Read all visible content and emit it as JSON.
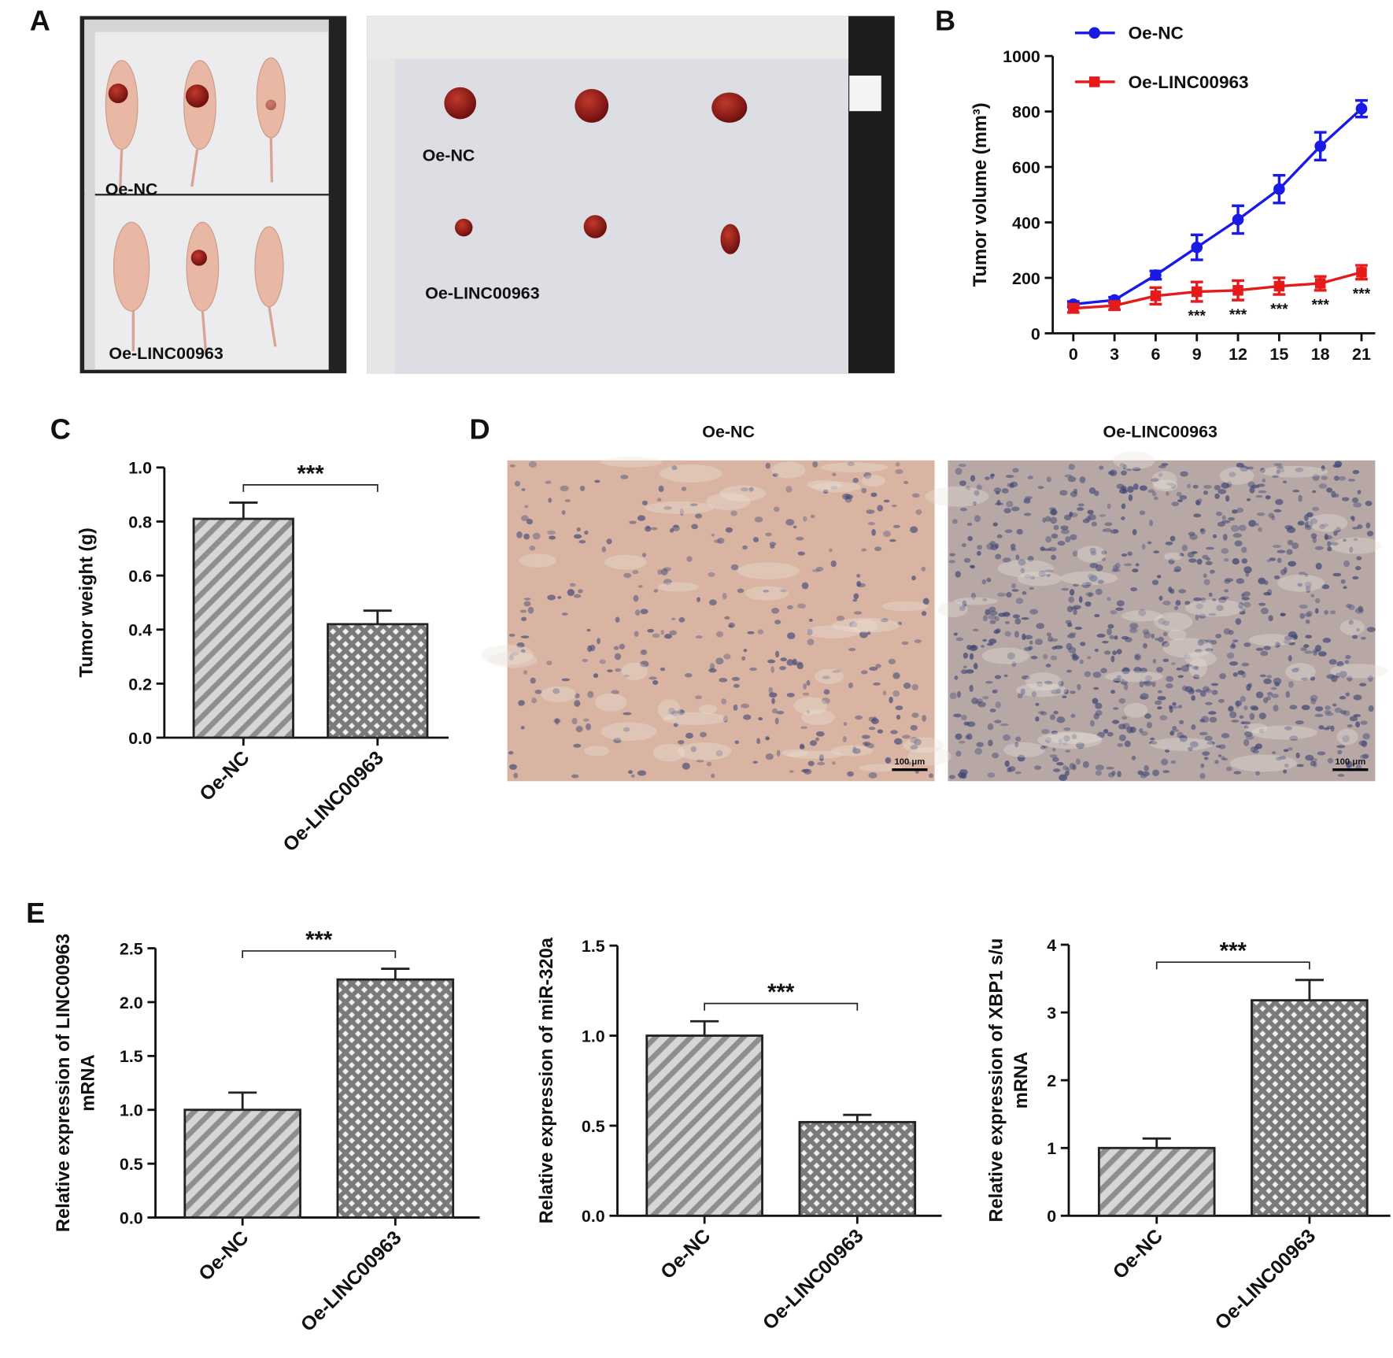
{
  "panel_labels": [
    "A",
    "B",
    "C",
    "D",
    "E"
  ],
  "photos": {
    "mice_groups": [
      "Oe-NC",
      "Oe-LINC00963"
    ],
    "tumor_groups": [
      "Oe-NC",
      "Oe-LINC00963"
    ]
  },
  "micrographs": {
    "titles": [
      "Oe-NC",
      "Oe-LINC00963"
    ],
    "scale_bar": "100 μm"
  },
  "chart_data": [
    {
      "type": "line",
      "y_label": "Tumor volume (mm³)",
      "x": [
        0,
        3,
        6,
        9,
        12,
        15,
        18,
        21
      ],
      "xlim": [
        -1.5,
        22
      ],
      "xticks": [
        0,
        3,
        6,
        9,
        12,
        15,
        18,
        21
      ],
      "ylim": [
        0,
        1000
      ],
      "yticks": [
        0,
        200,
        400,
        600,
        800,
        1000
      ],
      "legend": "upper left",
      "series": [
        {
          "name": "Oe-NC",
          "color": "#1a1ae6",
          "marker": "circle",
          "values": [
            105,
            120,
            210,
            310,
            410,
            520,
            675,
            810
          ],
          "errors": [
            10,
            10,
            15,
            45,
            50,
            50,
            50,
            30
          ]
        },
        {
          "name": "Oe-LINC00963",
          "color": "#e61a1a",
          "marker": "square",
          "values": [
            90,
            100,
            135,
            150,
            155,
            170,
            180,
            220
          ],
          "errors": [
            15,
            15,
            30,
            35,
            35,
            30,
            25,
            25
          ]
        }
      ],
      "annotations": [
        {
          "x": 9,
          "text": "***"
        },
        {
          "x": 12,
          "text": "***"
        },
        {
          "x": 15,
          "text": "***"
        },
        {
          "x": 18,
          "text": "***"
        },
        {
          "x": 21,
          "text": "***"
        }
      ]
    },
    {
      "type": "bar",
      "y_label": "Tumor weight (g)",
      "categories": [
        "Oe-NC",
        "Oe-LINC00963"
      ],
      "values": [
        0.81,
        0.42
      ],
      "errors": [
        0.06,
        0.05
      ],
      "hatches": [
        "diagonal",
        "crosshatch"
      ],
      "ylim": [
        0,
        1
      ],
      "yticks": [
        {
          "value": 0,
          "label": "0.0"
        },
        0.2,
        0.4,
        0.6,
        0.8,
        {
          "value": 1,
          "label": "1.0"
        }
      ],
      "significance": "***"
    },
    {
      "type": "bar",
      "y_label": [
        "Relative expression of LINC00963",
        "mRNA"
      ],
      "categories": [
        "Oe-NC",
        "Oe-LINC00963"
      ],
      "values": [
        1.0,
        2.21
      ],
      "errors": [
        0.16,
        0.1
      ],
      "hatches": [
        "diagonal",
        "crosshatch"
      ],
      "ylim": [
        0,
        2.5
      ],
      "yticks": [
        {
          "value": 0,
          "label": "0.0"
        },
        0.5,
        {
          "value": 1,
          "label": "1.0"
        },
        1.5,
        {
          "value": 2,
          "label": "2.0"
        },
        2.5
      ],
      "significance": "***"
    },
    {
      "type": "bar",
      "y_label": "Relative expression of miR-320a",
      "categories": [
        "Oe-NC",
        "Oe-LINC00963"
      ],
      "values": [
        1.0,
        0.52
      ],
      "errors": [
        0.08,
        0.04
      ],
      "hatches": [
        "diagonal",
        "crosshatch"
      ],
      "ylim": [
        0,
        1.5
      ],
      "yticks": [
        {
          "value": 0,
          "label": "0.0"
        },
        0.5,
        {
          "value": 1,
          "label": "1.0"
        },
        1.5
      ],
      "significance": "***"
    },
    {
      "type": "bar",
      "y_label": [
        "Relative expression of XBP1 s/u",
        "mRNA"
      ],
      "categories": [
        "Oe-NC",
        "Oe-LINC00963"
      ],
      "values": [
        1.0,
        3.18
      ],
      "errors": [
        0.14,
        0.3
      ],
      "hatches": [
        "diagonal",
        "crosshatch"
      ],
      "ylim": [
        0,
        4
      ],
      "yticks": [
        0,
        1,
        2,
        3,
        4
      ],
      "significance": "***"
    }
  ]
}
